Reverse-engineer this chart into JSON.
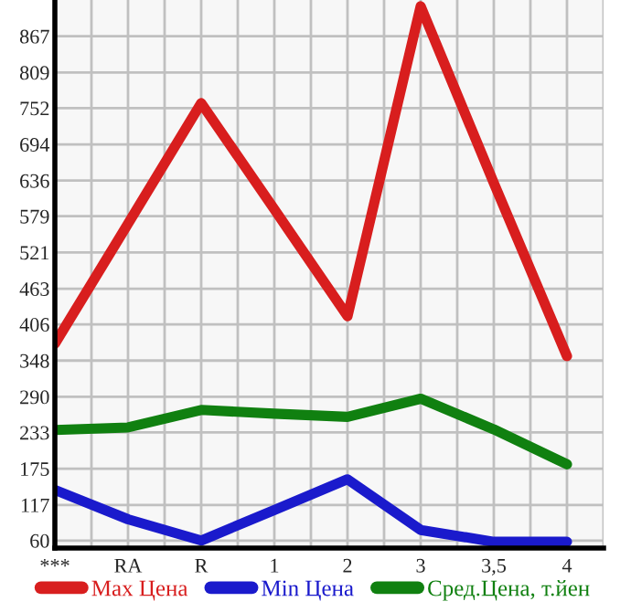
{
  "chart_data": {
    "type": "line",
    "categories": [
      "***",
      "RA",
      "R",
      "1",
      "2",
      "3",
      "3,5",
      "4"
    ],
    "series": [
      {
        "name": "Max Цена",
        "color": "#d81e1e",
        "values": [
          375,
          567,
          760,
          590,
          419,
          915,
          632,
          355
        ]
      },
      {
        "name": "Min Цена",
        "color": "#1a1acc",
        "values": [
          141,
          94,
          60,
          109,
          158,
          77,
          58,
          58
        ]
      },
      {
        "name": "Сред.Цена, т.йен",
        "color": "#108010",
        "values": [
          237,
          241,
          269,
          263,
          258,
          287,
          238,
          182
        ]
      }
    ],
    "ylim": [
      48,
      925
    ],
    "yticks": [
      60,
      117,
      175,
      233,
      290,
      348,
      406,
      463,
      521,
      579,
      636,
      694,
      752,
      809,
      867
    ],
    "grid": true,
    "legend": "bottom",
    "marker": "none",
    "line_style": "solid"
  }
}
